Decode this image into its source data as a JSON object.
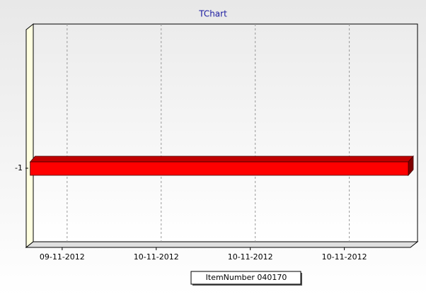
{
  "chart_data": {
    "type": "gantt",
    "title": "TChart",
    "categories": [
      "-1"
    ],
    "series": [
      {
        "name": "ItemNumber 040170",
        "color": "#ff0000",
        "start": [
          0.66
        ],
        "end": [
          4.68
        ]
      }
    ],
    "xlim": [
      0.64,
      4.68
    ],
    "xticks": [
      {
        "value": 1,
        "label": "09-11-2012"
      },
      {
        "value": 2,
        "label": "10-11-2012"
      },
      {
        "value": 3,
        "label": "10-11-2012"
      },
      {
        "value": 4,
        "label": "10-11-2012"
      }
    ],
    "grid": true,
    "legend": "bottom"
  }
}
